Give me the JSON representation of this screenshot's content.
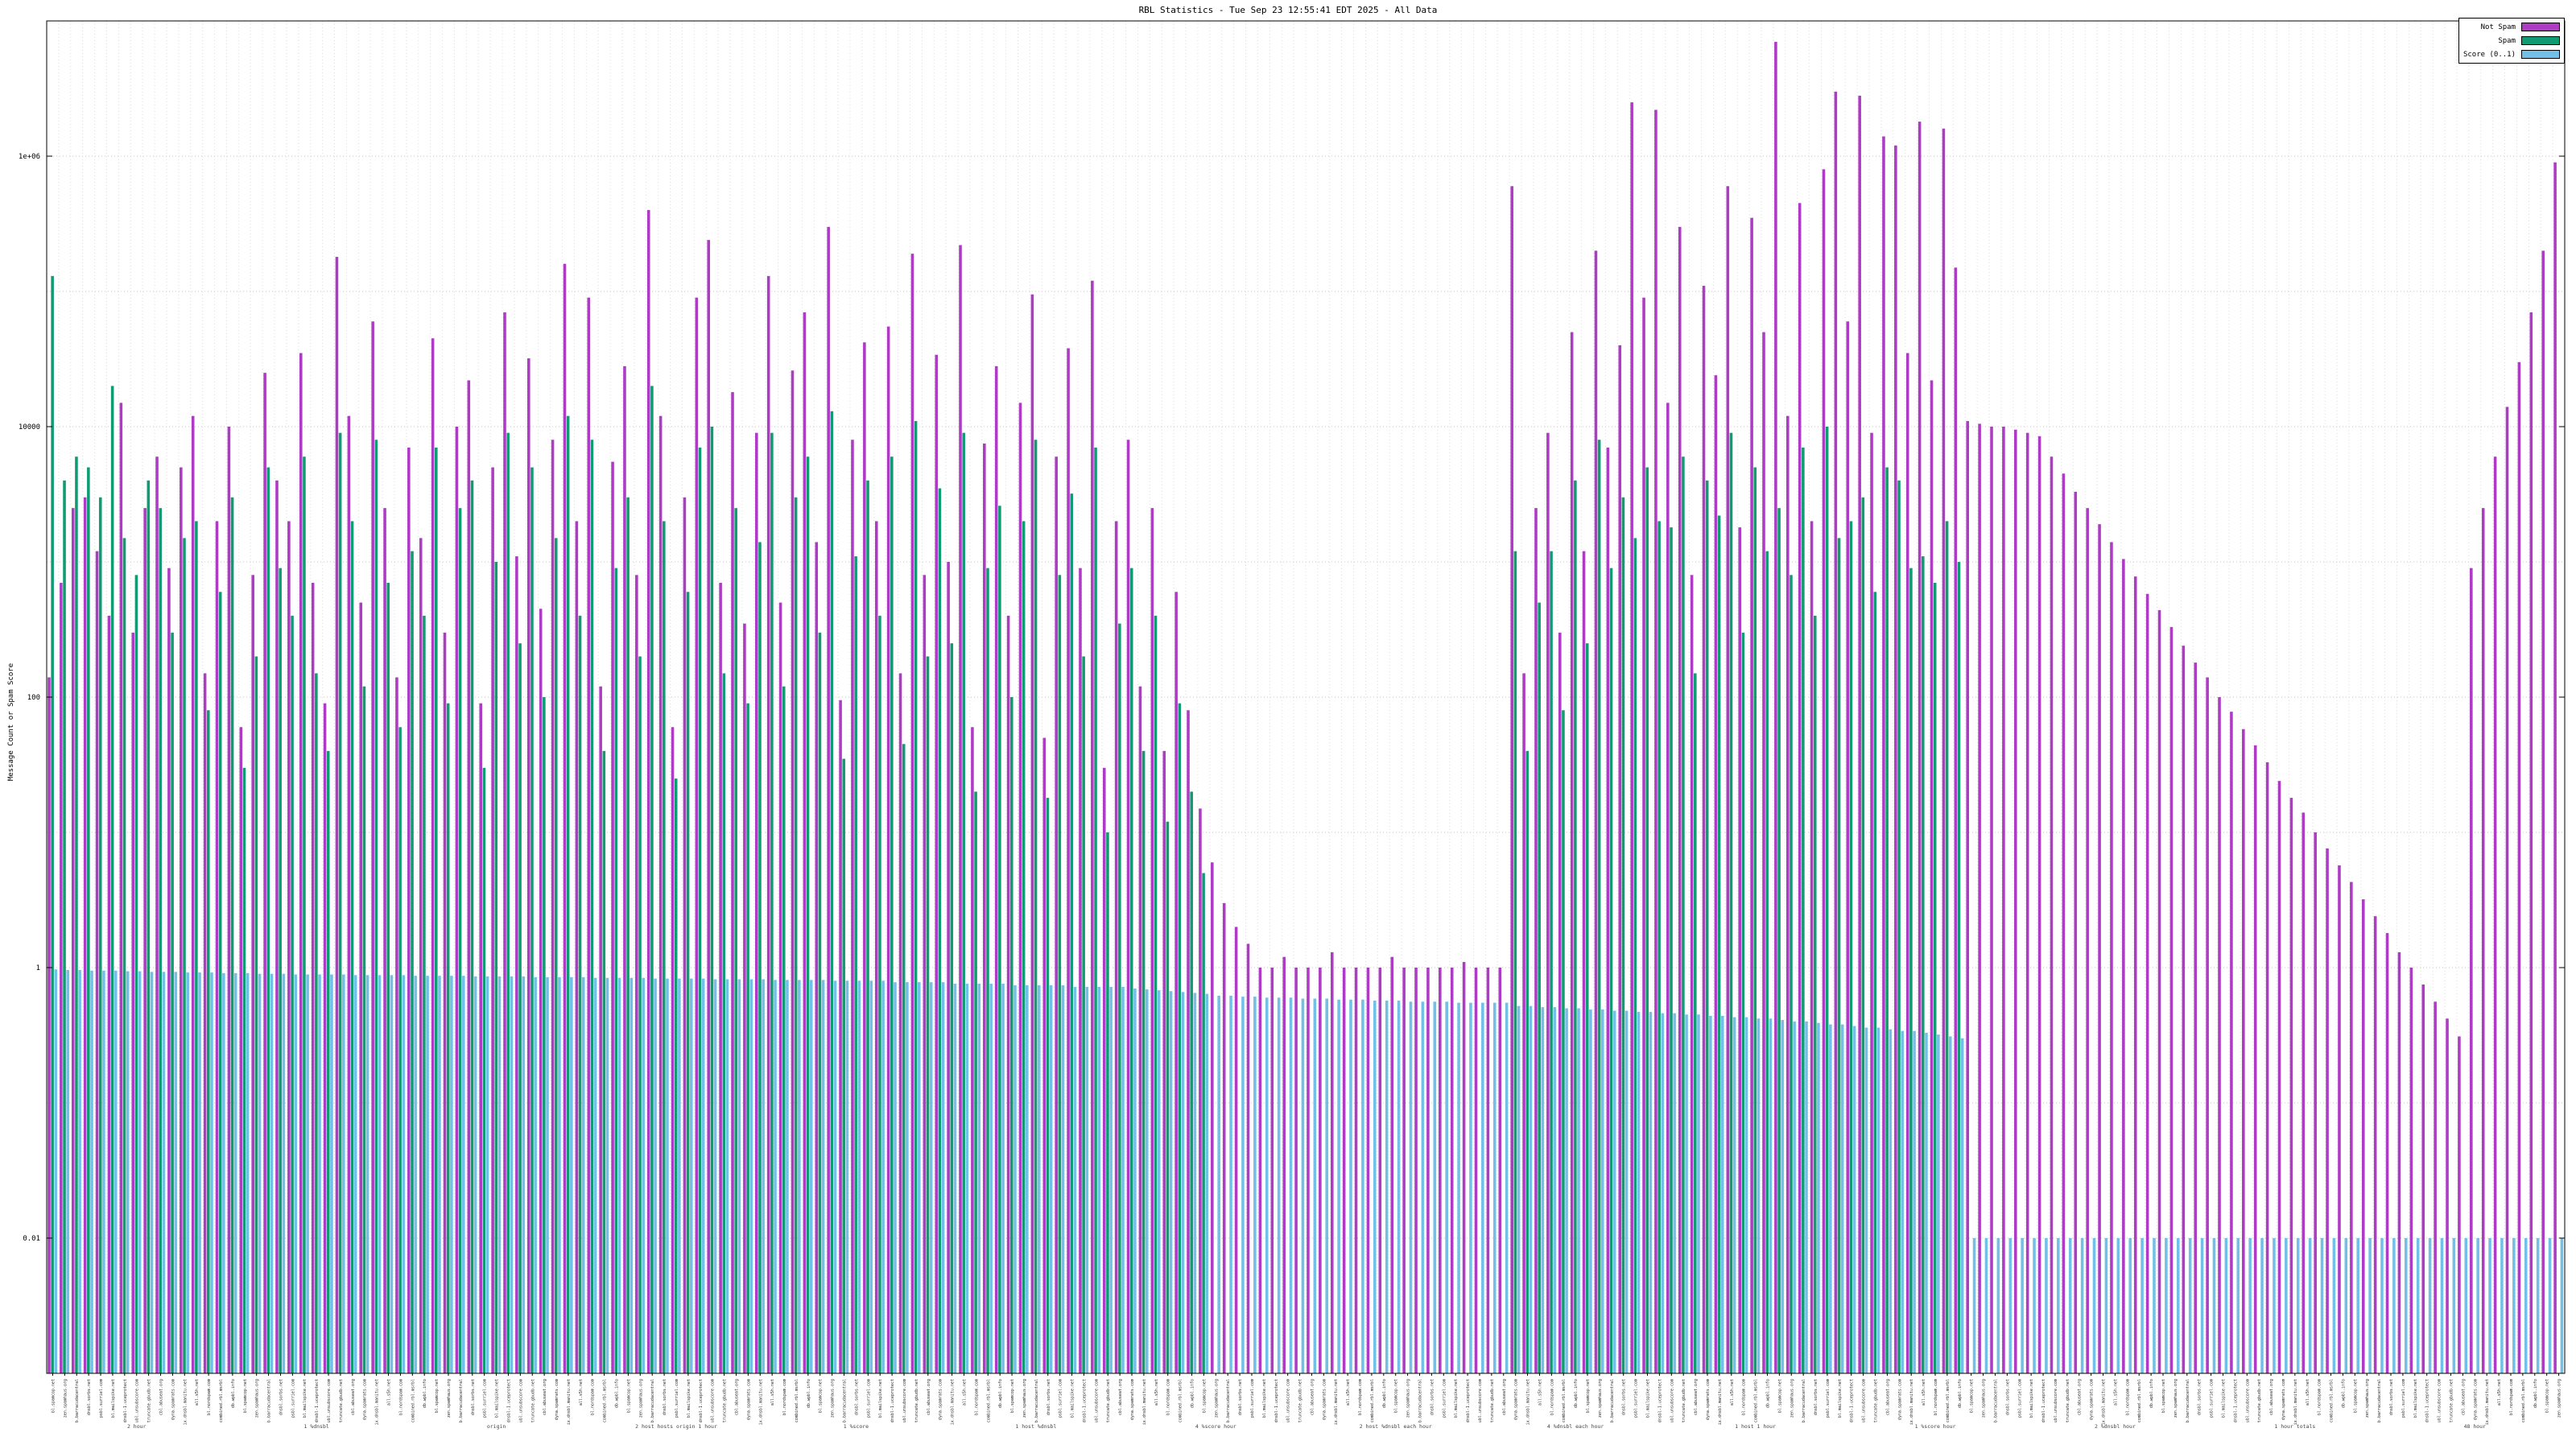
{
  "chart_data": {
    "type": "bar",
    "title": "RBL Statistics - Tue Sep 23 12:55:41 EDT 2025 - All Data",
    "ylabel": "Message Count or Spam Score",
    "xlabel": "",
    "y_scale": "log",
    "ylim": [
      0.001,
      10000000
    ],
    "ytick_labels": [
      "1e+06",
      "10000",
      "100",
      "1",
      "0.01"
    ],
    "ytick_values": [
      1000000,
      10000,
      100,
      1,
      0.01
    ],
    "grid": true,
    "legend_position": "top-right",
    "legend": [
      {
        "label": "Not Spam",
        "color": "#ad3bc4"
      },
      {
        "label": "Spam",
        "color": "#119b72"
      },
      {
        "label": "Score (0..1)",
        "color": "#72bfe8"
      }
    ],
    "series": [
      {
        "name": "Not Spam",
        "color": "#ad3bc4",
        "values": [
          140,
          700,
          2500,
          3000,
          1200,
          400,
          15000,
          300,
          2500,
          6000,
          900,
          5000,
          12000,
          150,
          2000,
          10000,
          60,
          800,
          25000,
          4000,
          2000,
          35000,
          700,
          90,
          180000,
          12000,
          500,
          60000,
          2500,
          140,
          7000,
          1500,
          45000,
          300,
          10000,
          22000,
          90,
          5000,
          70000,
          1100,
          32000,
          450,
          8000,
          160000,
          2000,
          90000,
          120,
          5500,
          28000,
          800,
          400000,
          12000,
          60,
          3000,
          90000,
          240000,
          700,
          18000,
          350,
          9000,
          130000,
          500,
          26000,
          70000,
          1400,
          300000,
          95,
          8000,
          42000,
          2000,
          55000,
          150,
          190000,
          800,
          34000,
          1000,
          220000,
          60,
          7500,
          28000,
          400,
          15000,
          95000,
          50,
          6000,
          38000,
          900,
          120000,
          30,
          2000,
          8000,
          120,
          2500,
          40,
          600,
          80,
          15,
          6,
          3,
          2,
          1.5,
          1,
          1,
          1.2,
          1,
          1,
          1,
          1.3,
          1,
          1,
          1,
          1,
          1.2,
          1,
          1,
          1,
          1,
          1,
          1.1,
          1,
          1,
          1,
          600000,
          150,
          2500,
          9000,
          300,
          50000,
          1200,
          200000,
          7000,
          40000,
          2500000,
          90000,
          2200000,
          15000,
          300000,
          800,
          110000,
          24000,
          600000,
          1800,
          350000,
          50000,
          7000000,
          12000,
          450000,
          2000,
          800000,
          3000000,
          60000,
          2800000,
          9000,
          1400000,
          1200000,
          35000,
          1800000,
          22000,
          1600000,
          150000,
          11000,
          10500,
          10000,
          10000,
          9500,
          9000,
          8500,
          6000,
          4500,
          3300,
          2500,
          1900,
          1400,
          1050,
          780,
          580,
          440,
          330,
          240,
          180,
          140,
          100,
          78,
          58,
          44,
          33,
          24,
          18,
          14,
          10,
          7.6,
          5.7,
          4.3,
          3.2,
          2.4,
          1.8,
          1.3,
          1.0,
          0.75,
          0.56,
          0.42,
          0.31,
          900,
          2500,
          6000,
          14000,
          30000,
          70000,
          200000,
          900000
        ]
      },
      {
        "name": "Spam",
        "color": "#119b72",
        "values": [
          130000,
          4000,
          6000,
          5000,
          3000,
          20000,
          1500,
          800,
          4000,
          2500,
          300,
          1500,
          2000,
          80,
          600,
          3000,
          30,
          200,
          5000,
          900,
          400,
          6000,
          150,
          40,
          9000,
          2000,
          120,
          8000,
          700,
          60,
          1200,
          400,
          7000,
          90,
          2500,
          4000,
          30,
          1000,
          9000,
          250,
          5000,
          100,
          1500,
          12000,
          400,
          8000,
          40,
          900,
          3000,
          200,
          20000,
          2000,
          25,
          600,
          7000,
          10000,
          150,
          2500,
          90,
          1400,
          9000,
          120,
          3000,
          6000,
          300,
          13000,
          35,
          1100,
          4000,
          400,
          6000,
          45,
          11000,
          200,
          3500,
          250,
          9000,
          20,
          900,
          2600,
          100,
          2000,
          8000,
          18,
          800,
          3200,
          200,
          7000,
          10,
          350,
          900,
          40,
          400,
          12,
          90,
          20,
          5,
          0,
          0,
          0,
          0,
          0,
          0,
          0,
          0,
          0,
          0,
          0,
          0,
          0,
          0,
          0,
          0,
          0,
          0,
          0,
          0,
          0,
          0,
          0,
          0,
          0,
          1200,
          40,
          500,
          1200,
          80,
          4000,
          250,
          8000,
          900,
          3000,
          1500,
          5000,
          2000,
          1800,
          6000,
          150,
          4000,
          2200,
          9000,
          300,
          5000,
          1200,
          2500,
          800,
          7000,
          400,
          10000,
          1500,
          2000,
          3000,
          600,
          5000,
          4000,
          900,
          1100,
          700,
          2000,
          1000,
          0,
          0,
          0,
          0,
          0,
          0,
          0,
          0,
          0,
          0,
          0,
          0,
          0,
          0,
          0,
          0,
          0,
          0,
          0,
          0,
          0,
          0,
          0,
          0,
          0,
          0,
          0,
          0,
          0,
          0,
          0,
          0,
          0,
          0,
          0,
          0,
          0,
          0,
          0,
          0,
          0,
          0,
          0,
          0,
          0,
          0,
          0,
          0,
          0,
          0
        ]
      },
      {
        "name": "Score (0..1)",
        "color": "#72bfe8",
        "values": [
          0.97,
          0.96,
          0.96,
          0.95,
          0.95,
          0.95,
          0.94,
          0.94,
          0.93,
          0.93,
          0.93,
          0.92,
          0.92,
          0.92,
          0.91,
          0.91,
          0.91,
          0.9,
          0.9,
          0.9,
          0.89,
          0.89,
          0.89,
          0.89,
          0.89,
          0.88,
          0.88,
          0.88,
          0.88,
          0.88,
          0.87,
          0.87,
          0.87,
          0.87,
          0.87,
          0.86,
          0.86,
          0.86,
          0.86,
          0.86,
          0.85,
          0.85,
          0.85,
          0.85,
          0.85,
          0.84,
          0.84,
          0.84,
          0.84,
          0.84,
          0.83,
          0.83,
          0.83,
          0.83,
          0.83,
          0.82,
          0.82,
          0.82,
          0.82,
          0.82,
          0.81,
          0.81,
          0.81,
          0.81,
          0.81,
          0.8,
          0.8,
          0.8,
          0.8,
          0.8,
          0.78,
          0.78,
          0.78,
          0.78,
          0.78,
          0.76,
          0.76,
          0.76,
          0.76,
          0.76,
          0.74,
          0.74,
          0.74,
          0.74,
          0.74,
          0.72,
          0.72,
          0.72,
          0.72,
          0.72,
          0.7,
          0.69,
          0.68,
          0.67,
          0.66,
          0.65,
          0.64,
          0.62,
          0.62,
          0.61,
          0.61,
          0.6,
          0.6,
          0.6,
          0.59,
          0.59,
          0.59,
          0.58,
          0.58,
          0.58,
          0.57,
          0.57,
          0.57,
          0.56,
          0.56,
          0.56,
          0.56,
          0.55,
          0.55,
          0.55,
          0.55,
          0.55,
          0.52,
          0.52,
          0.51,
          0.51,
          0.5,
          0.5,
          0.49,
          0.49,
          0.48,
          0.48,
          0.47,
          0.47,
          0.46,
          0.46,
          0.45,
          0.45,
          0.44,
          0.44,
          0.43,
          0.43,
          0.42,
          0.42,
          0.41,
          0.4,
          0.4,
          0.39,
          0.38,
          0.38,
          0.37,
          0.36,
          0.36,
          0.35,
          0.34,
          0.34,
          0.33,
          0.32,
          0.31,
          0.3,
          0.01,
          0.01,
          0.01,
          0.01,
          0.01,
          0.01,
          0.01,
          0.01,
          0.01,
          0.01,
          0.01,
          0.01,
          0.01,
          0.01,
          0.01,
          0.01,
          0.01,
          0.01,
          0.01,
          0.01,
          0.01,
          0.01,
          0.01,
          0.01,
          0.01,
          0.01,
          0.01,
          0.01,
          0.01,
          0.01,
          0.01,
          0.01,
          0.01,
          0.01,
          0.01,
          0.01,
          0.01,
          0.01,
          0.01,
          0.01,
          0.01,
          0.01,
          0.01,
          0.01,
          0.01,
          0.01,
          0.01,
          0.01,
          0.01,
          0.01
        ]
      }
    ],
    "x_tick_labels_cycle": [
      "bl.spamcop.net",
      "zen.spamhaus.org",
      "b.barracudacentral",
      "dnsbl.sorbs.net",
      "psbl.surriel.com",
      "bl.mailspike.net",
      "dnsbl-1.uceprotect",
      "ubl.unsubscore.com",
      "truncate.gbudb.net",
      "cbl.abuseat.org",
      "dyna.spamrats.com",
      "ix.dnsbl.manitu.net",
      "all.s5h.net",
      "bl.nordspam.com",
      "combined.rbl.msrbl",
      "db.wpbl.info"
    ],
    "x_footer_labels": [
      "2 hour",
      "1 %dnsbl",
      "origin",
      "2 host hosts origin 1 hour",
      "1 %score",
      "1 host %dnsbl",
      "4 %score hour",
      "2 host %dnsbl each hour",
      "4 %dnsbl each hour",
      "1 host 1 hour",
      "1 %score hour",
      "2 %dnsbl hour",
      "1 hour totals",
      "48 hour"
    ]
  }
}
